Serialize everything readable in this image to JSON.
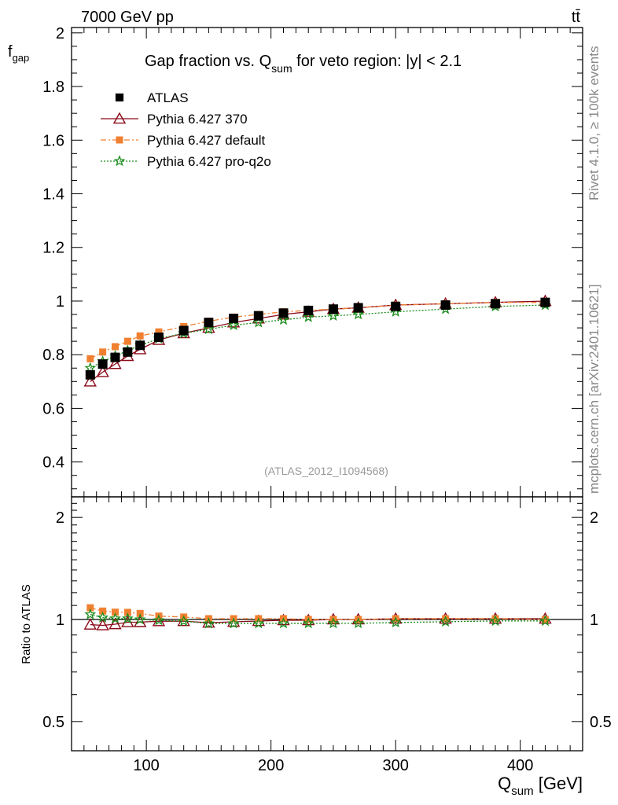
{
  "header": {
    "energy_label": "7000 GeV pp",
    "process_label": "tt̄"
  },
  "side_text": {
    "rivet": "Rivet 4.1.0, ≥ 100k events",
    "mcplots": "mcplots.cern.ch [arXiv:2401.10621]"
  },
  "chart_data": {
    "type": "line",
    "title_prefix": "Gap fraction vs. Q",
    "title_sub": "sum",
    "title_suffix": " for veto region: |y| < 2.1",
    "analysis_tag": "(ATLAS_2012_I1094568)",
    "xlabel_main": "Q",
    "xlabel_sub": "sum",
    "xlabel_unit": " [GeV]",
    "ylabel_main": "f",
    "ylabel_sub": "gap",
    "ratio_ylabel": "Ratio to ATLAS",
    "xlim": [
      40,
      450
    ],
    "ylim": [
      0.27,
      2.02
    ],
    "ratio_ylim": [
      0.41,
      2.3
    ],
    "x_ticks": [
      100,
      200,
      300,
      400
    ],
    "x_tick_labels": [
      "100",
      "200",
      "300",
      "400"
    ],
    "y_ticks": [
      0.4,
      0.6,
      0.8,
      1.0,
      1.2,
      1.4,
      1.6,
      1.8,
      2.0
    ],
    "y_tick_labels": [
      "0.4",
      "0.6",
      "0.8",
      "1",
      "1.2",
      "1.4",
      "1.6",
      "1.8",
      "2"
    ],
    "ratio_ticks": [
      0.5,
      1,
      2
    ],
    "ratio_tick_labels": [
      "0.5",
      "1",
      "2"
    ],
    "x": [
      55,
      65,
      75,
      85,
      95,
      110,
      130,
      150,
      170,
      190,
      210,
      230,
      250,
      270,
      300,
      340,
      380,
      420
    ],
    "series": [
      {
        "name": "ATLAS",
        "color": "#000000",
        "style": "data",
        "values": [
          0.725,
          0.765,
          0.79,
          0.81,
          0.835,
          0.865,
          0.89,
          0.92,
          0.935,
          0.945,
          0.955,
          0.965,
          0.97,
          0.975,
          0.98,
          0.985,
          0.99,
          0.995
        ]
      },
      {
        "name": "Pythia 6.427 370",
        "color": "#8b0a1a",
        "style": "solid",
        "values": [
          0.7,
          0.735,
          0.765,
          0.795,
          0.82,
          0.855,
          0.88,
          0.9,
          0.92,
          0.935,
          0.95,
          0.96,
          0.97,
          0.975,
          0.985,
          0.99,
          0.995,
          1.0
        ]
      },
      {
        "name": "Pythia 6.427 default",
        "color": "#f08030",
        "style": "dashdot",
        "values": [
          0.785,
          0.81,
          0.83,
          0.85,
          0.87,
          0.885,
          0.905,
          0.925,
          0.94,
          0.95,
          0.96,
          0.965,
          0.97,
          0.975,
          0.985,
          0.99,
          0.995,
          0.995
        ]
      },
      {
        "name": "Pythia 6.427 pro-q2o",
        "color": "#1a8c1a",
        "style": "dotted",
        "values": [
          0.75,
          0.775,
          0.795,
          0.815,
          0.835,
          0.86,
          0.88,
          0.895,
          0.91,
          0.92,
          0.93,
          0.94,
          0.945,
          0.95,
          0.96,
          0.97,
          0.98,
          0.985
        ]
      }
    ]
  }
}
